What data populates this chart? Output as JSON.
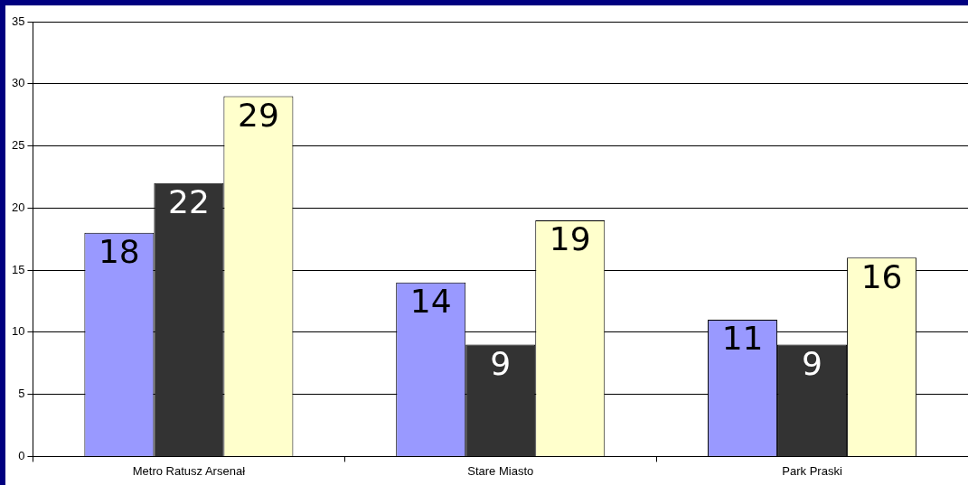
{
  "chart_data": {
    "type": "bar",
    "categories": [
      "Metro Ratusz Arsenał",
      "Stare Miasto",
      "Park Praski"
    ],
    "series": [
      {
        "color": "#9999ff",
        "values": [
          18,
          14,
          11
        ]
      },
      {
        "color": "#333333",
        "values": [
          22,
          9,
          9
        ]
      },
      {
        "color": "#ffffcc",
        "values": [
          29,
          19,
          16
        ]
      }
    ],
    "ylim": [
      0,
      35
    ],
    "yticks": [
      0,
      5,
      10,
      15,
      20,
      25,
      30,
      35
    ],
    "grid": "y",
    "legend": false,
    "data_labels": true
  }
}
